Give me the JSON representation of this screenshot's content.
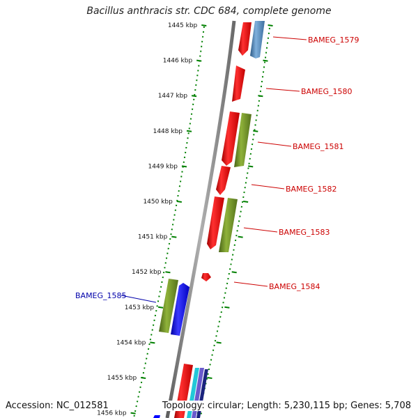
{
  "title": "Bacillus anthracis str. CDC 684, complete genome",
  "footer": {
    "accession": "Accession: NC_012581",
    "summary": "Topology: circular; Length: 5,230,115 bp; Genes: 5,708"
  },
  "ruler": {
    "ticks": [
      "1445 kbp",
      "1446 kbp",
      "1447 kbp",
      "1448 kbp",
      "1449 kbp",
      "1450 kbp",
      "1451 kbp",
      "1452 kbp",
      "1453 kbp",
      "1454 kbp",
      "1455 kbp",
      "1456 kbp"
    ]
  },
  "gene_labels": [
    {
      "text": "BAMEG_1579",
      "color": "#cc0000"
    },
    {
      "text": "BAMEG_1580",
      "color": "#cc0000"
    },
    {
      "text": "BAMEG_1581",
      "color": "#cc0000"
    },
    {
      "text": "BAMEG_1582",
      "color": "#cc0000"
    },
    {
      "text": "BAMEG_1583",
      "color": "#cc0000"
    },
    {
      "text": "BAMEG_1584",
      "color": "#cc0000"
    },
    {
      "text": "BAMEG_1585",
      "color": "#0000aa"
    }
  ],
  "colors": {
    "backbone": "#808080",
    "tick_green": "#008000",
    "gene_red": "#ff0000",
    "gene_steelblue": "#4682b4",
    "gene_olive": "#6b8e23",
    "gene_blue": "#0000ff",
    "gene_cyan": "#00bcd4",
    "gene_slate": "#6a5acd"
  }
}
